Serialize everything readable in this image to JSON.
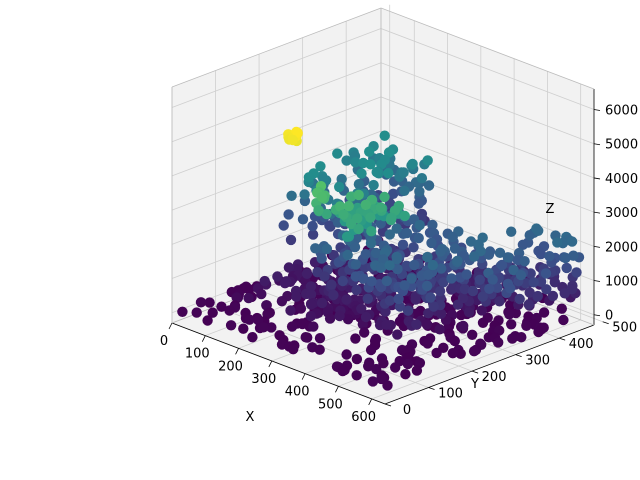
{
  "chart_data": {
    "type": "scatter",
    "subtype": "3d-scatter",
    "title": "",
    "xlabel": "X",
    "ylabel": "Y",
    "zlabel": "Z",
    "x_ticks": [
      "0",
      "100",
      "200",
      "300",
      "400",
      "500",
      "600"
    ],
    "y_ticks": [
      "0",
      "100",
      "200",
      "300",
      "400",
      "500"
    ],
    "z_ticks": [
      "0",
      "1000",
      "2000",
      "3000",
      "4000",
      "5000",
      "6000"
    ],
    "xlim": [
      0,
      640
    ],
    "ylim": [
      0,
      480
    ],
    "zlim": [
      -300,
      6600
    ],
    "grid": true,
    "legend": "none",
    "colormap": "viridis",
    "color_encodes": "z",
    "colormap_stops": [
      "#440154",
      "#3b528b",
      "#21918c",
      "#5ec962",
      "#fde725"
    ],
    "pane_color": "#f2f2f2",
    "grid_color": "#cfcfcf",
    "clusters": [
      {
        "x_range": [
          10,
          630
        ],
        "y_range": [
          10,
          470
        ],
        "z_range": [
          0,
          80
        ],
        "points": 260
      },
      {
        "x_range": [
          60,
          330
        ],
        "y_range": [
          100,
          300
        ],
        "z_range": [
          150,
          600
        ],
        "points": 90
      },
      {
        "x_range": [
          380,
          630
        ],
        "y_range": [
          330,
          470
        ],
        "z_range": [
          400,
          1000
        ],
        "points": 30
      },
      {
        "x_range": [
          200,
          520
        ],
        "y_range": [
          150,
          380
        ],
        "z_range": [
          200,
          2200
        ],
        "points": 320
      },
      {
        "x_range": [
          10,
          190
        ],
        "y_range": [
          240,
          470
        ],
        "z_range": [
          1000,
          3100
        ],
        "points": 140
      },
      {
        "x_range": [
          470,
          630
        ],
        "y_range": [
          280,
          470
        ],
        "z_range": [
          800,
          2200
        ],
        "points": 90
      },
      {
        "x_range": [
          330,
          470
        ],
        "y_range": [
          80,
          200
        ],
        "z_range": [
          3300,
          4100
        ],
        "points": 40
      },
      {
        "x_range": [
          320,
          360
        ],
        "y_range": [
          75,
          95
        ],
        "z_range": [
          3700,
          4600
        ],
        "points": 10
      },
      {
        "x_range": [
          310,
          340
        ],
        "y_range": [
          20,
          40
        ],
        "z_range": [
          6100,
          6400
        ],
        "points": 10
      }
    ]
  }
}
